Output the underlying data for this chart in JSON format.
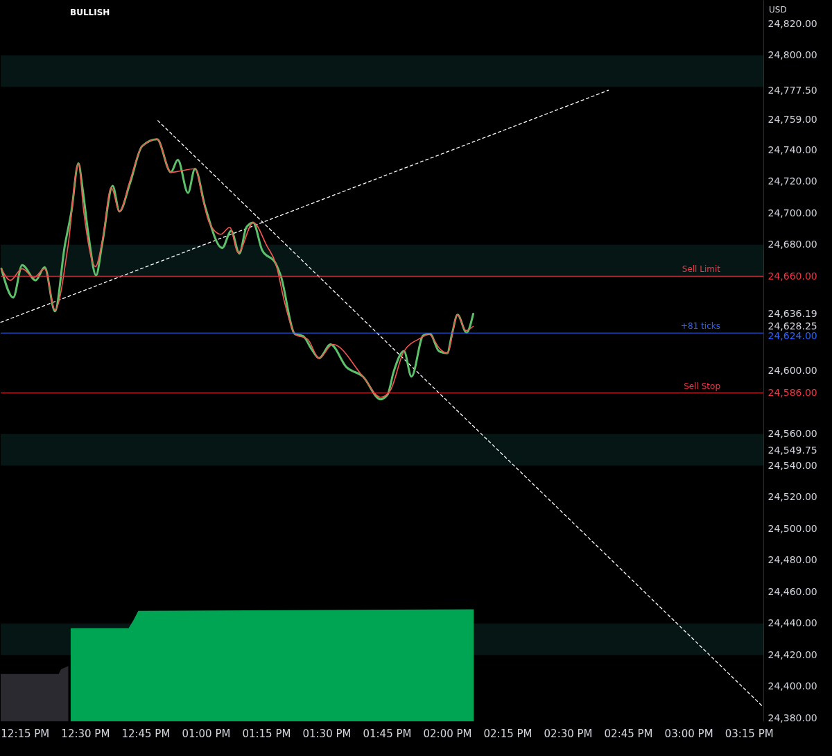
{
  "chart_data": {
    "type": "line",
    "annotations": [
      "BULLISH",
      "USD"
    ],
    "xlim": [
      12.15,
      15.31
    ],
    "xticks": [
      {
        "value": 12.25,
        "label": "12:15 PM"
      },
      {
        "value": 12.5,
        "label": "12:30 PM"
      },
      {
        "value": 12.75,
        "label": "12:45 PM"
      },
      {
        "value": 13,
        "label": "01:00 PM"
      },
      {
        "value": 13.25,
        "label": "01:15 PM"
      },
      {
        "value": 13.5,
        "label": "01:30 PM"
      },
      {
        "value": 13.75,
        "label": "01:45 PM"
      },
      {
        "value": 14,
        "label": "02:00 PM"
      },
      {
        "value": 14.25,
        "label": "02:15 PM"
      },
      {
        "value": 14.5,
        "label": "02:30 PM"
      },
      {
        "value": 14.75,
        "label": "02:45 PM"
      },
      {
        "value": 15,
        "label": "03:00 PM"
      },
      {
        "value": 15.25,
        "label": "03:15 PM"
      }
    ],
    "ylim": [
      24378,
      24835
    ],
    "yticks": [
      {
        "value": 24380,
        "label": "24,380.00"
      },
      {
        "value": 24400,
        "label": "24,400.00"
      },
      {
        "value": 24420,
        "label": "24,420.00"
      },
      {
        "value": 24440,
        "label": "24,440.00"
      },
      {
        "value": 24460,
        "label": "24,460.00"
      },
      {
        "value": 24480,
        "label": "24,480.00"
      },
      {
        "value": 24500,
        "label": "24,500.00"
      },
      {
        "value": 24520,
        "label": "24,520.00"
      },
      {
        "value": 24540,
        "label": "24,540.00"
      },
      {
        "value": 24549.75,
        "label": "24,549.75"
      },
      {
        "value": 24560,
        "label": "24,560.00"
      },
      {
        "value": 24586,
        "label": "24,586.00"
      },
      {
        "value": 24600,
        "label": "24,600.00"
      },
      {
        "value": 24624,
        "label": "24,624.00"
      },
      {
        "value": 24628.25,
        "label": "24,628.25"
      },
      {
        "value": 24636.19,
        "label": "24,636.19"
      },
      {
        "value": 24660,
        "label": "24,660.00"
      },
      {
        "value": 24680,
        "label": "24,680.00"
      },
      {
        "value": 24700,
        "label": "24,700.00"
      },
      {
        "value": 24720,
        "label": "24,720.00"
      },
      {
        "value": 24740,
        "label": "24,740.00"
      },
      {
        "value": 24759,
        "label": "24,759.00"
      },
      {
        "value": 24777.5,
        "label": "24,777.50"
      },
      {
        "value": 24800,
        "label": "24,800.00"
      },
      {
        "value": 24820,
        "label": "24,820.00"
      }
    ],
    "bands": [
      {
        "axis": "y",
        "from": 24780,
        "to": 24800,
        "color": "#061615"
      },
      {
        "axis": "y",
        "from": 24660,
        "to": 24680,
        "color": "#061615"
      },
      {
        "axis": "y",
        "from": 24540,
        "to": 24560,
        "color": "#061615"
      },
      {
        "axis": "y",
        "from": 24420,
        "to": 24440,
        "color": "#061615"
      }
    ],
    "ref_lines": [
      {
        "axis": "y",
        "value": 24660,
        "label": "Sell Limit",
        "color": "#f23645"
      },
      {
        "axis": "y",
        "value": 24624,
        "label": "+81 ticks",
        "color": "#2962ff"
      },
      {
        "axis": "y",
        "value": 24586,
        "label": "Sell Stop",
        "color": "#f23645"
      }
    ],
    "series": [
      {
        "type": "area",
        "color": "#2a2a30",
        "x": [
          12.15,
          12.39,
          12.4,
          12.43
        ],
        "values": [
          24408,
          24408,
          24411,
          24413
        ]
      },
      {
        "type": "area",
        "color": "#00a554",
        "x": [
          12.44,
          12.68,
          12.7,
          12.72,
          14.11
        ],
        "values": [
          24437,
          24437,
          24442,
          24448,
          24449
        ]
      },
      {
        "type": "line",
        "color": "#ffffff",
        "line_style": "dashed",
        "x": [
          12.15,
          14.668
        ],
        "values": [
          24630.8,
          24777.8
        ]
      },
      {
        "type": "line",
        "color": "#ffffff",
        "line_style": "dashed",
        "x": [
          12.801,
          15.31
        ],
        "values": [
          24758.6,
          24387
        ]
      },
      {
        "type": "line",
        "color": "#5cc16a",
        "x": [
          12.153,
          12.202,
          12.239,
          12.295,
          12.332,
          12.375,
          12.415,
          12.443,
          12.472,
          12.489,
          12.514,
          12.545,
          12.571,
          12.614,
          12.642,
          12.685,
          12.736,
          12.798,
          12.855,
          12.884,
          12.926,
          12.955,
          12.997,
          13.068,
          13.105,
          13.139,
          13.168,
          13.196,
          13.233,
          13.29,
          13.31,
          13.369,
          13.403,
          13.438,
          13.469,
          13.517,
          13.582,
          13.651,
          13.724,
          13.753,
          13.778,
          13.821,
          13.852,
          13.901,
          13.929,
          13.966,
          14.0,
          14.02,
          14.043,
          14.08,
          14.108
        ],
        "values": [
          24664.8,
          24646.5,
          24667.0,
          24657.4,
          24665.7,
          24637.8,
          24678.8,
          24701.0,
          24731.5,
          24715.8,
          24685.8,
          24660.5,
          24681.0,
          24717.2,
          24701.0,
          24718.5,
          24742.4,
          24746.8,
          24725.9,
          24733.7,
          24712.8,
          24728.1,
          24704.1,
          24677.9,
          24688.8,
          24674.4,
          24691.0,
          24694.0,
          24676.6,
          24667.9,
          24660.5,
          24623.4,
          24622.1,
          24613.8,
          24608.1,
          24616.8,
          24602.5,
          24596.4,
          24582.0,
          24585.0,
          24599.4,
          24612.5,
          24596.4,
          24622.5,
          24623.4,
          24612.5,
          24611.2,
          24623.4,
          24635.6,
          24624.3,
          24636.19
        ]
      },
      {
        "type": "line",
        "color": "#f5564f",
        "x": [
          12.153,
          12.19,
          12.239,
          12.287,
          12.332,
          12.375,
          12.429,
          12.472,
          12.494,
          12.543,
          12.571,
          12.608,
          12.642,
          12.685,
          12.736,
          12.798,
          12.855,
          12.957,
          12.986,
          13.014,
          13.062,
          13.099,
          13.134,
          13.196,
          13.253,
          13.29,
          13.327,
          13.369,
          13.423,
          13.469,
          13.526,
          13.651,
          13.724,
          13.764,
          13.821,
          13.895,
          13.923,
          13.971,
          14.0,
          14.043,
          14.077,
          14.108
        ],
        "values": [
          24664.8,
          24657.4,
          24664.8,
          24659.2,
          24664.8,
          24638.7,
          24679.2,
          24731.5,
          24701.0,
          24666.1,
          24682.3,
          24716.3,
          24701.0,
          24720.2,
          24742.4,
          24746.8,
          24725.9,
          24728.1,
          24709.7,
          24694.0,
          24686.6,
          24691.0,
          24674.9,
          24694.0,
          24679.2,
          24667.9,
          24643.0,
          24623.4,
          24619.9,
          24608.1,
          24616.8,
          24596.4,
          24583.3,
          24587.6,
          24612.5,
          24621.2,
          24623.4,
          24613.8,
          24611.2,
          24635.6,
          24625.6,
          24628.25
        ]
      }
    ]
  }
}
